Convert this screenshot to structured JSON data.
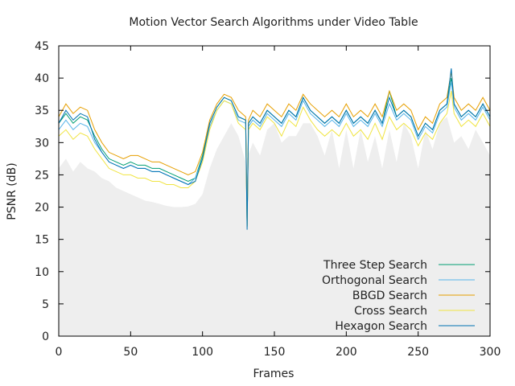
{
  "chart_data": {
    "type": "line",
    "title": "Motion Vector Search Algorithms under Video Table",
    "xlabel": "Frames",
    "ylabel": "PSNR (dB)",
    "xlim": [
      0,
      300
    ],
    "ylim": [
      0,
      45
    ],
    "xticks": [
      0,
      50,
      100,
      150,
      200,
      250,
      300
    ],
    "yticks": [
      0,
      5,
      10,
      15,
      20,
      25,
      30,
      35,
      40,
      45
    ],
    "grid": false,
    "legend_position": "bottom-right",
    "background_series": {
      "fill_color": "#eeeeee",
      "x": [
        0,
        5,
        10,
        15,
        20,
        25,
        30,
        35,
        40,
        45,
        50,
        55,
        60,
        65,
        70,
        75,
        80,
        85,
        90,
        95,
        100,
        105,
        110,
        115,
        120,
        125,
        130,
        135,
        140,
        145,
        150,
        155,
        160,
        165,
        170,
        175,
        180,
        185,
        190,
        195,
        200,
        205,
        210,
        215,
        220,
        225,
        230,
        235,
        240,
        245,
        250,
        255,
        260,
        265,
        270,
        275,
        280,
        285,
        290,
        295,
        300
      ],
      "values": [
        26,
        27.5,
        25.5,
        27,
        26,
        25.5,
        24.5,
        24,
        23,
        22.5,
        22,
        21.5,
        21,
        20.8,
        20.5,
        20.2,
        20,
        20,
        20.1,
        20.5,
        22,
        26,
        29,
        31,
        33,
        31,
        27,
        30,
        28,
        32,
        33,
        30,
        31,
        31,
        33,
        33,
        31,
        28,
        32,
        26,
        32,
        26,
        32,
        27,
        31,
        26,
        32,
        27,
        33,
        31,
        26,
        32,
        29,
        33,
        34,
        30,
        31,
        29,
        32,
        30,
        28
      ]
    },
    "x": [
      0,
      5,
      10,
      15,
      20,
      25,
      30,
      35,
      40,
      45,
      50,
      55,
      60,
      65,
      70,
      75,
      80,
      85,
      90,
      95,
      100,
      105,
      110,
      115,
      120,
      125,
      130,
      131,
      132,
      135,
      140,
      145,
      150,
      155,
      160,
      165,
      170,
      175,
      180,
      185,
      190,
      195,
      200,
      205,
      210,
      215,
      220,
      225,
      230,
      235,
      240,
      245,
      250,
      255,
      260,
      265,
      270,
      273,
      275,
      280,
      285,
      290,
      295,
      300
    ],
    "series": [
      {
        "name": "Three Step Search",
        "color": "#009e73",
        "values": [
          33,
          34.5,
          33,
          34,
          33.5,
          31,
          29,
          27.5,
          27,
          26.5,
          27,
          26.5,
          26.5,
          26,
          26,
          25.5,
          25,
          24.5,
          24,
          24.5,
          28,
          33,
          35.5,
          37,
          36.5,
          34,
          33.5,
          17,
          33,
          34,
          33,
          35,
          34,
          33,
          35,
          34,
          37,
          35,
          34,
          33,
          34,
          33,
          35,
          33,
          34,
          33,
          35,
          33,
          38,
          34,
          35,
          34,
          31,
          33,
          32,
          35,
          36,
          40,
          36,
          34,
          35,
          34,
          36,
          34
        ]
      },
      {
        "name": "Orthogonal Search",
        "color": "#56b4e9",
        "values": [
          32,
          33.5,
          32,
          33,
          32.5,
          30,
          28.5,
          27,
          26.5,
          26,
          26.5,
          26,
          26,
          25.5,
          25.5,
          25,
          24.5,
          24,
          23.5,
          24.5,
          27.5,
          32.5,
          35,
          36.5,
          36,
          33.5,
          33,
          17,
          32.5,
          33.5,
          32.5,
          34.5,
          33.5,
          32.5,
          34.5,
          33.5,
          36.5,
          34.5,
          33.5,
          32.5,
          33.5,
          32.5,
          34.5,
          32.5,
          33.5,
          32.5,
          34.5,
          32.5,
          36,
          33.5,
          34.5,
          33.5,
          30.5,
          32.5,
          31.5,
          34.5,
          35.5,
          39.5,
          35.5,
          33.5,
          34.5,
          33.5,
          35.5,
          33.5
        ]
      },
      {
        "name": "BBGD Search",
        "color": "#e69f00",
        "values": [
          34,
          36,
          34.5,
          35.5,
          35,
          32,
          30,
          28.5,
          28,
          27.5,
          28,
          28,
          27.5,
          27,
          27,
          26.5,
          26,
          25.5,
          25,
          25.5,
          28.5,
          33.5,
          36,
          37.5,
          37,
          35,
          34,
          17,
          33.5,
          35,
          34,
          36,
          35,
          34,
          36,
          35,
          37.5,
          36,
          35,
          34,
          35,
          34,
          36,
          34,
          35,
          34,
          36,
          34,
          38,
          35,
          36,
          35,
          32,
          34,
          33,
          36,
          37,
          41,
          37,
          35,
          36,
          35,
          37,
          35
        ]
      },
      {
        "name": "Cross Search",
        "color": "#f0e442",
        "values": [
          31,
          32,
          30.5,
          31.5,
          31,
          29,
          27.5,
          26,
          25.5,
          25,
          25,
          24.5,
          24.5,
          24,
          24,
          23.5,
          23.5,
          23,
          23,
          24,
          27,
          32,
          35,
          36.5,
          36,
          33,
          32,
          17,
          32,
          33,
          32,
          34,
          33,
          31,
          33.5,
          32.5,
          35.5,
          33.5,
          32,
          31,
          32,
          31,
          33,
          31,
          32,
          30.5,
          33,
          30.5,
          34,
          32,
          33,
          32,
          29.5,
          31.5,
          30.5,
          33,
          34.5,
          38,
          34.5,
          32.5,
          33.5,
          32.5,
          34.5,
          32.5
        ]
      },
      {
        "name": "Hexagon Search",
        "color": "#0072b2",
        "values": [
          33,
          35,
          33.5,
          34.5,
          34,
          30.5,
          28.5,
          27,
          26.5,
          26,
          26.5,
          26,
          26,
          25.5,
          25.5,
          25,
          24.5,
          24,
          23.5,
          24,
          27.5,
          33,
          35.5,
          37,
          36.5,
          34,
          33.5,
          16.5,
          33,
          34,
          33,
          35,
          34,
          33,
          35,
          34,
          37,
          35,
          34,
          33,
          34,
          33,
          35,
          33,
          34,
          33,
          35,
          33,
          37,
          34,
          35,
          34,
          31,
          33,
          32,
          35,
          36,
          41.5,
          36,
          34,
          35,
          34,
          36,
          34
        ]
      }
    ]
  }
}
